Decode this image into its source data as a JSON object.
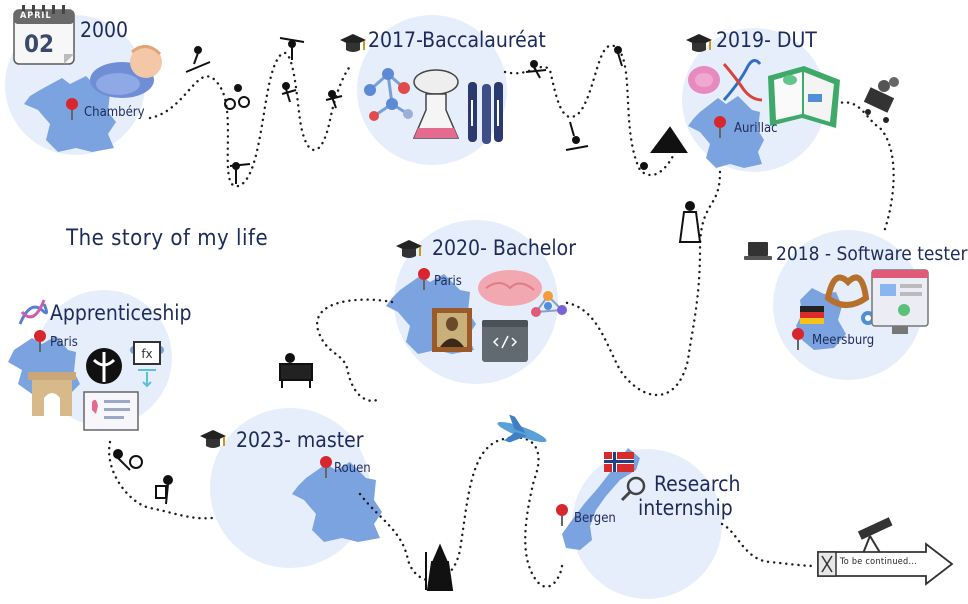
{
  "title": "The story of my life",
  "calendar": {
    "month": "APRIL",
    "day": "02"
  },
  "milestones": [
    {
      "id": "birth",
      "heading": "2000",
      "place": "Chambéry"
    },
    {
      "id": "bac",
      "heading": "2017-Baccalauréat"
    },
    {
      "id": "dut",
      "heading": "2019- DUT",
      "place": "Aurillac"
    },
    {
      "id": "tester",
      "heading": "2018 - Software tester",
      "place": "Meersburg"
    },
    {
      "id": "bachelor",
      "heading": "2020- Bachelor",
      "place": "Paris"
    },
    {
      "id": "apprenticeship",
      "heading": "Apprenticeship",
      "place": "Paris"
    },
    {
      "id": "master",
      "heading": "2023- master",
      "place": "Rouen"
    },
    {
      "id": "internship",
      "heading": "Research internship",
      "heading_line1": "Research",
      "heading_line2": "internship",
      "place": "Bergen"
    }
  ],
  "end_sign": "To be continued...",
  "colors": {
    "bubble": "#e6eefb",
    "map": "#7ba3df",
    "text": "#1d2b5a",
    "pin": "#d8262f",
    "path": "#1c1c1c"
  }
}
